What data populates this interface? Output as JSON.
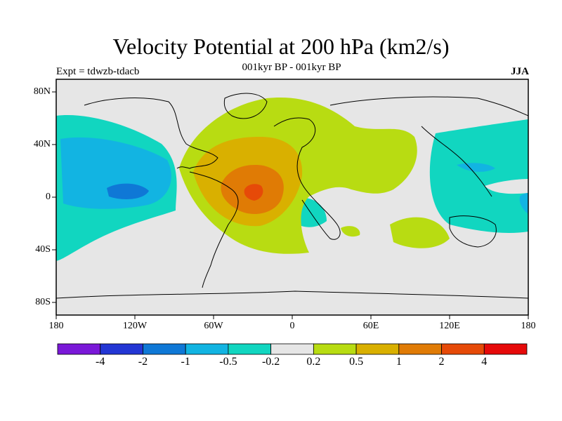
{
  "title": "Velocity Potential at 200 hPa (km2/s)",
  "subtitle": "001kyr BP - 001kyr BP",
  "left_label": "Expt = tdwzb-tdacb",
  "right_label": "JJA",
  "y_ticks": [
    "80N",
    "40N",
    "0",
    "40S",
    "80S"
  ],
  "x_ticks": [
    "180",
    "120W",
    "60W",
    "0",
    "60E",
    "120E",
    "180"
  ],
  "colorbar": {
    "colors": [
      "#7a18d8",
      "#2336d4",
      "#0f78d6",
      "#12b4e2",
      "#11d6c0",
      "#e6e6e6",
      "#b8dc12",
      "#d9b000",
      "#e07b05",
      "#e64a08",
      "#e60a0a"
    ],
    "labels": [
      "-4",
      "-2",
      "-1",
      "-0.5",
      "-0.2",
      "0.2",
      "0.5",
      "1",
      "2",
      "4"
    ]
  }
}
